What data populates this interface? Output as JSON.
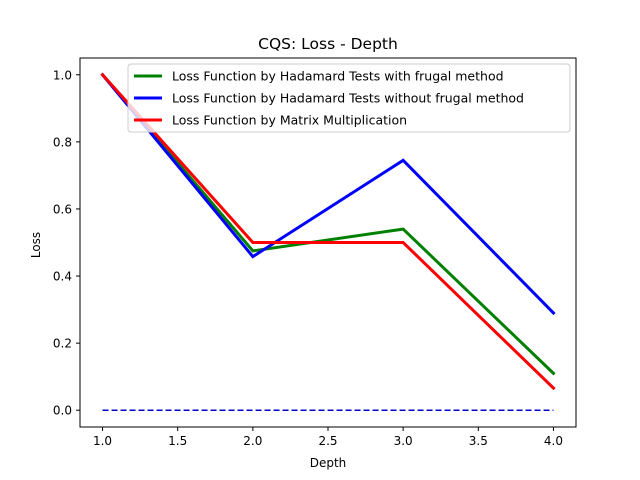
{
  "chart_data": {
    "type": "line",
    "title": "CQS: Loss - Depth",
    "xlabel": "Depth",
    "ylabel": "Loss",
    "xlim": [
      0.85,
      4.15
    ],
    "ylim": [
      -0.05,
      1.05
    ],
    "xticks": [
      1.0,
      1.5,
      2.0,
      2.5,
      3.0,
      3.5,
      4.0
    ],
    "xtick_labels": [
      "1.0",
      "1.5",
      "2.0",
      "2.5",
      "3.0",
      "3.5",
      "4.0"
    ],
    "yticks": [
      0.0,
      0.2,
      0.4,
      0.6,
      0.8,
      1.0
    ],
    "ytick_labels": [
      "0.0",
      "0.2",
      "0.4",
      "0.6",
      "0.8",
      "1.0"
    ],
    "grid": false,
    "legend_position": "top-right",
    "x": [
      1,
      2,
      3,
      4
    ],
    "series": [
      {
        "name": "Loss Function by Hadamard Tests with frugal method",
        "values": [
          1.0,
          0.475,
          0.54,
          0.11
        ],
        "color": "#008000",
        "style": "solid"
      },
      {
        "name": "Loss Function by Hadamard Tests without frugal method",
        "values": [
          1.0,
          0.458,
          0.745,
          0.29
        ],
        "color": "#0000ff",
        "style": "solid"
      },
      {
        "name": "Loss Function by Matrix Multiplication",
        "values": [
          1.0,
          0.5,
          0.5,
          0.066
        ],
        "color": "#ff0000",
        "style": "solid"
      }
    ],
    "reference_line": {
      "x": [
        1,
        4
      ],
      "values": [
        0.0,
        0.0
      ],
      "color": "#0000cc",
      "style": "dashed"
    }
  }
}
